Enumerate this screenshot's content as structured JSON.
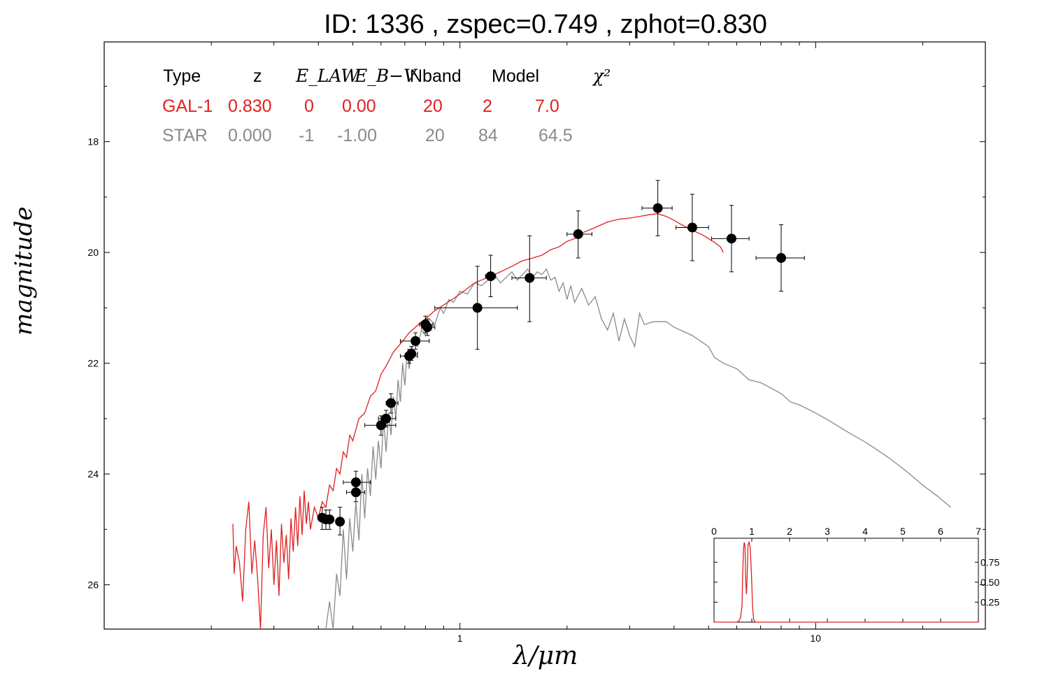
{
  "title": "ID:  1336  , zspec=0.749 , zphot=0.830",
  "chart_data": {
    "type": "line",
    "title": "ID:  1336  , zspec=0.749 , zphot=0.830",
    "xlabel": "λ/μm",
    "ylabel": "magnitude",
    "x_scale": "log",
    "xlim": [
      0.1,
      30
    ],
    "ylim": [
      26.8,
      16.2
    ],
    "y_inverted": true,
    "x_ticks": [
      {
        "value": 1,
        "label": "1"
      },
      {
        "value": 10,
        "label": "10"
      }
    ],
    "y_ticks": [
      {
        "value": 18,
        "label": "18"
      },
      {
        "value": 20,
        "label": "20"
      },
      {
        "value": 22,
        "label": "22"
      },
      {
        "value": 24,
        "label": "24"
      },
      {
        "value": 26,
        "label": "26"
      }
    ],
    "legend_table": {
      "headers": [
        "Type",
        "z",
        "E_LAW",
        "E_B−V",
        "Nband",
        "Model",
        "χ²"
      ],
      "rows": [
        {
          "type": "GAL-1",
          "z": "0.830",
          "elaw": "0",
          "ebv": "0.00",
          "nband": "20",
          "model": "2",
          "chi2": "7.0",
          "color": "#e02020"
        },
        {
          "type": "STAR",
          "z": "0.000",
          "elaw": "-1",
          "ebv": "-1.00",
          "nband": "20",
          "model": "84",
          "chi2": "64.5",
          "color": "#8a8a8a"
        }
      ]
    },
    "series": [
      {
        "color": "#e02020",
        "points": [
          [
            0.23,
            24.9
          ],
          [
            0.232,
            25.8
          ],
          [
            0.235,
            25.3
          ],
          [
            0.24,
            25.6
          ],
          [
            0.245,
            26.3
          ],
          [
            0.25,
            25.0
          ],
          [
            0.255,
            24.5
          ],
          [
            0.26,
            25.8
          ],
          [
            0.265,
            25.2
          ],
          [
            0.27,
            25.9
          ],
          [
            0.275,
            26.9
          ],
          [
            0.28,
            25.1
          ],
          [
            0.285,
            24.6
          ],
          [
            0.29,
            25.7
          ],
          [
            0.295,
            25.0
          ],
          [
            0.3,
            26.0
          ],
          [
            0.305,
            25.2
          ],
          [
            0.31,
            26.2
          ],
          [
            0.315,
            24.9
          ],
          [
            0.32,
            25.6
          ],
          [
            0.325,
            25.1
          ],
          [
            0.33,
            25.9
          ],
          [
            0.335,
            24.8
          ],
          [
            0.34,
            25.4
          ],
          [
            0.345,
            24.6
          ],
          [
            0.35,
            25.3
          ],
          [
            0.355,
            24.4
          ],
          [
            0.36,
            25.1
          ],
          [
            0.365,
            24.3
          ],
          [
            0.37,
            24.9
          ],
          [
            0.375,
            24.5
          ],
          [
            0.38,
            25.0
          ],
          [
            0.39,
            24.6
          ],
          [
            0.4,
            24.8
          ],
          [
            0.41,
            24.5
          ],
          [
            0.42,
            24.6
          ],
          [
            0.43,
            24.2
          ],
          [
            0.44,
            24.3
          ],
          [
            0.45,
            23.9
          ],
          [
            0.46,
            24.0
          ],
          [
            0.47,
            23.6
          ],
          [
            0.48,
            23.7
          ],
          [
            0.49,
            23.3
          ],
          [
            0.5,
            23.4
          ],
          [
            0.52,
            23.0
          ],
          [
            0.54,
            22.9
          ],
          [
            0.56,
            22.6
          ],
          [
            0.58,
            22.5
          ],
          [
            0.6,
            22.2
          ],
          [
            0.62,
            22.05
          ],
          [
            0.65,
            21.8
          ],
          [
            0.68,
            21.65
          ],
          [
            0.7,
            21.55
          ],
          [
            0.72,
            21.45
          ],
          [
            0.75,
            21.35
          ],
          [
            0.78,
            21.25
          ],
          [
            0.8,
            21.2
          ],
          [
            0.85,
            21.05
          ],
          [
            0.9,
            20.95
          ],
          [
            0.95,
            20.85
          ],
          [
            1.0,
            20.75
          ],
          [
            1.05,
            20.65
          ],
          [
            1.1,
            20.55
          ],
          [
            1.2,
            20.45
          ],
          [
            1.3,
            20.35
          ],
          [
            1.4,
            20.25
          ],
          [
            1.5,
            20.15
          ],
          [
            1.6,
            20.1
          ],
          [
            1.7,
            20.05
          ],
          [
            1.8,
            19.95
          ],
          [
            1.9,
            19.9
          ],
          [
            2.0,
            19.8
          ],
          [
            2.1,
            19.75
          ],
          [
            2.2,
            19.65
          ],
          [
            2.4,
            19.55
          ],
          [
            2.6,
            19.45
          ],
          [
            2.8,
            19.4
          ],
          [
            3.0,
            19.38
          ],
          [
            3.2,
            19.35
          ],
          [
            3.4,
            19.32
          ],
          [
            3.6,
            19.3
          ],
          [
            3.8,
            19.35
          ],
          [
            4.0,
            19.42
          ],
          [
            4.2,
            19.5
          ],
          [
            4.5,
            19.6
          ],
          [
            4.8,
            19.68
          ],
          [
            5.0,
            19.75
          ],
          [
            5.2,
            19.82
          ],
          [
            5.4,
            19.9
          ],
          [
            5.5,
            20.0
          ]
        ]
      },
      {
        "color": "#8a8a8a",
        "points": [
          [
            0.42,
            26.8
          ],
          [
            0.43,
            26.3
          ],
          [
            0.44,
            26.9
          ],
          [
            0.45,
            25.8
          ],
          [
            0.46,
            26.2
          ],
          [
            0.47,
            25.0
          ],
          [
            0.48,
            25.9
          ],
          [
            0.49,
            24.8
          ],
          [
            0.5,
            25.4
          ],
          [
            0.51,
            24.5
          ],
          [
            0.52,
            25.2
          ],
          [
            0.53,
            24.0
          ],
          [
            0.54,
            24.8
          ],
          [
            0.55,
            23.9
          ],
          [
            0.56,
            24.4
          ],
          [
            0.57,
            23.5
          ],
          [
            0.58,
            24.1
          ],
          [
            0.59,
            23.4
          ],
          [
            0.6,
            23.9
          ],
          [
            0.61,
            23.0
          ],
          [
            0.62,
            23.6
          ],
          [
            0.63,
            22.9
          ],
          [
            0.64,
            23.3
          ],
          [
            0.65,
            22.6
          ],
          [
            0.66,
            23.0
          ],
          [
            0.67,
            22.3
          ],
          [
            0.68,
            22.7
          ],
          [
            0.69,
            22.0
          ],
          [
            0.7,
            22.4
          ],
          [
            0.71,
            21.8
          ],
          [
            0.72,
            22.1
          ],
          [
            0.74,
            21.6
          ],
          [
            0.76,
            21.7
          ],
          [
            0.78,
            21.4
          ],
          [
            0.8,
            21.5
          ],
          [
            0.82,
            21.2
          ],
          [
            0.85,
            21.3
          ],
          [
            0.88,
            21.0
          ],
          [
            0.9,
            21.1
          ],
          [
            0.93,
            20.85
          ],
          [
            0.96,
            20.9
          ],
          [
            1.0,
            20.7
          ],
          [
            1.05,
            20.75
          ],
          [
            1.1,
            20.55
          ],
          [
            1.15,
            20.6
          ],
          [
            1.2,
            20.5
          ],
          [
            1.25,
            20.4
          ],
          [
            1.3,
            20.55
          ],
          [
            1.35,
            20.45
          ],
          [
            1.4,
            20.35
          ],
          [
            1.45,
            20.5
          ],
          [
            1.5,
            20.4
          ],
          [
            1.55,
            20.3
          ],
          [
            1.6,
            20.45
          ],
          [
            1.65,
            20.35
          ],
          [
            1.7,
            20.4
          ],
          [
            1.75,
            20.3
          ],
          [
            1.8,
            20.5
          ],
          [
            1.85,
            20.45
          ],
          [
            1.9,
            20.7
          ],
          [
            1.95,
            20.55
          ],
          [
            2.0,
            20.85
          ],
          [
            2.05,
            20.6
          ],
          [
            2.1,
            20.9
          ],
          [
            2.2,
            20.65
          ],
          [
            2.3,
            20.95
          ],
          [
            2.4,
            20.8
          ],
          [
            2.5,
            21.2
          ],
          [
            2.6,
            21.4
          ],
          [
            2.7,
            21.1
          ],
          [
            2.8,
            21.6
          ],
          [
            2.9,
            21.2
          ],
          [
            3.0,
            21.5
          ],
          [
            3.1,
            21.7
          ],
          [
            3.2,
            21.1
          ],
          [
            3.3,
            21.3
          ],
          [
            3.5,
            21.25
          ],
          [
            3.8,
            21.25
          ],
          [
            4.0,
            21.35
          ],
          [
            4.5,
            21.5
          ],
          [
            5.0,
            21.7
          ],
          [
            5.2,
            21.9
          ],
          [
            5.5,
            22.0
          ],
          [
            6.0,
            22.1
          ],
          [
            6.5,
            22.3
          ],
          [
            7.0,
            22.35
          ],
          [
            7.5,
            22.45
          ],
          [
            8.0,
            22.55
          ],
          [
            8.5,
            22.7
          ],
          [
            9.0,
            22.75
          ],
          [
            10.0,
            22.9
          ],
          [
            11.0,
            23.05
          ],
          [
            12.0,
            23.2
          ],
          [
            14.0,
            23.45
          ],
          [
            16.0,
            23.7
          ],
          [
            18.0,
            23.95
          ],
          [
            20.0,
            24.2
          ],
          [
            22.0,
            24.4
          ],
          [
            24.0,
            24.6
          ]
        ]
      }
    ],
    "photometry": [
      {
        "x": 0.41,
        "y": 24.79,
        "xerr": [
          0.4,
          0.42
        ],
        "yerr": [
          24.6,
          25.0
        ]
      },
      {
        "x": 0.42,
        "y": 24.82,
        "xerr": [
          0.41,
          0.43
        ],
        "yerr": [
          24.65,
          25.0
        ]
      },
      {
        "x": 0.43,
        "y": 24.82,
        "xerr": [
          0.42,
          0.44
        ],
        "yerr": [
          24.65,
          25.0
        ]
      },
      {
        "x": 0.46,
        "y": 24.86,
        "xerr": [
          0.45,
          0.47
        ],
        "yerr": [
          24.6,
          25.1
        ]
      },
      {
        "x": 0.51,
        "y": 24.33,
        "xerr": [
          0.48,
          0.54
        ],
        "yerr": [
          24.1,
          24.5
        ]
      },
      {
        "x": 0.51,
        "y": 24.15,
        "xerr": [
          0.47,
          0.56
        ],
        "yerr": [
          23.95,
          24.3
        ]
      },
      {
        "x": 0.6,
        "y": 23.12,
        "xerr": [
          0.54,
          0.66
        ],
        "yerr": [
          22.95,
          23.3
        ]
      },
      {
        "x": 0.62,
        "y": 23.0,
        "xerr": [
          0.59,
          0.66
        ],
        "yerr": [
          22.85,
          23.15
        ]
      },
      {
        "x": 0.64,
        "y": 22.72,
        "xerr": [
          0.62,
          0.67
        ],
        "yerr": [
          22.55,
          22.9
        ]
      },
      {
        "x": 0.72,
        "y": 21.87,
        "xerr": [
          0.68,
          0.76
        ],
        "yerr": [
          21.75,
          22.0
        ]
      },
      {
        "x": 0.73,
        "y": 21.83,
        "xerr": [
          0.71,
          0.76
        ],
        "yerr": [
          21.7,
          21.95
        ]
      },
      {
        "x": 0.75,
        "y": 21.6,
        "xerr": [
          0.68,
          0.82
        ],
        "yerr": [
          21.45,
          21.75
        ]
      },
      {
        "x": 0.8,
        "y": 21.3,
        "xerr": [
          0.77,
          0.84
        ],
        "yerr": [
          21.15,
          21.45
        ]
      },
      {
        "x": 0.81,
        "y": 21.35,
        "xerr": [
          0.78,
          0.85
        ],
        "yerr": [
          21.2,
          21.5
        ]
      },
      {
        "x": 1.12,
        "y": 21.0,
        "xerr": [
          0.85,
          1.45
        ],
        "yerr": [
          20.25,
          21.75
        ]
      },
      {
        "x": 1.22,
        "y": 20.43,
        "xerr": [
          1.18,
          1.26
        ],
        "yerr": [
          20.05,
          20.8
        ]
      },
      {
        "x": 1.57,
        "y": 20.46,
        "xerr": [
          1.4,
          1.75
        ],
        "yerr": [
          19.7,
          21.25
        ]
      },
      {
        "x": 2.15,
        "y": 19.67,
        "xerr": [
          2.0,
          2.35
        ],
        "yerr": [
          19.25,
          20.1
        ]
      },
      {
        "x": 3.6,
        "y": 19.2,
        "xerr": [
          3.25,
          3.95
        ],
        "yerr": [
          18.7,
          19.7
        ]
      },
      {
        "x": 4.5,
        "y": 19.55,
        "xerr": [
          4.05,
          5.0
        ],
        "yerr": [
          18.95,
          20.15
        ]
      },
      {
        "x": 5.8,
        "y": 19.75,
        "xerr": [
          5.1,
          6.5
        ],
        "yerr": [
          19.15,
          20.35
        ]
      },
      {
        "x": 8.0,
        "y": 20.1,
        "xerr": [
          6.8,
          9.3
        ],
        "yerr": [
          19.5,
          20.7
        ]
      }
    ],
    "inset": {
      "type": "line",
      "xlim": [
        0,
        7
      ],
      "ylim": [
        0,
        1.05
      ],
      "x_ticks": [
        "0",
        "1",
        "2",
        "3",
        "4",
        "5",
        "6",
        "7"
      ],
      "y_ticks": [
        "0.25",
        "0.50",
        "0.75"
      ],
      "color": "#e02020",
      "points": [
        [
          0,
          0
        ],
        [
          0.6,
          0
        ],
        [
          0.65,
          0.01
        ],
        [
          0.7,
          0.05
        ],
        [
          0.74,
          0.2
        ],
        [
          0.76,
          0.6
        ],
        [
          0.78,
          0.9
        ],
        [
          0.8,
          1.0
        ],
        [
          0.82,
          0.95
        ],
        [
          0.84,
          0.5
        ],
        [
          0.86,
          0.35
        ],
        [
          0.88,
          0.6
        ],
        [
          0.9,
          0.97
        ],
        [
          0.93,
          1.0
        ],
        [
          0.96,
          0.93
        ],
        [
          0.99,
          0.6
        ],
        [
          1.02,
          0.2
        ],
        [
          1.05,
          0.03
        ],
        [
          1.1,
          0
        ],
        [
          7,
          0
        ]
      ]
    }
  }
}
